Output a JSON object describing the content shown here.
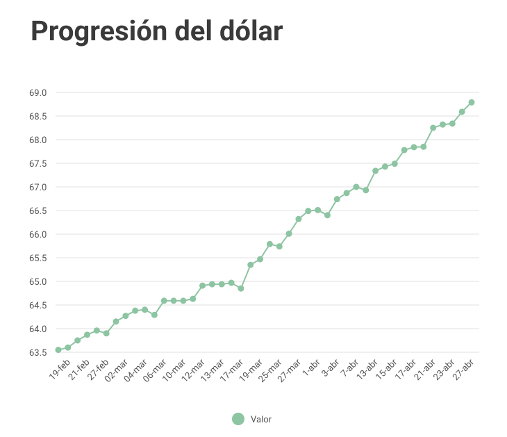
{
  "chart_data": {
    "type": "line",
    "title": "Progresión del dólar",
    "categories": [
      null,
      "19-feb",
      null,
      "21-feb",
      null,
      "27-feb",
      null,
      "02-mar",
      null,
      "04-mar",
      null,
      "06-mar",
      null,
      "10-mar",
      null,
      "12-mar",
      null,
      "13-mar",
      null,
      "17-mar",
      null,
      "19-mar",
      null,
      "25-mar",
      null,
      "27-mar",
      null,
      "1-abr",
      null,
      "3-abr",
      null,
      "7-abr",
      null,
      "13-abr",
      null,
      "15-abr",
      null,
      "17-abr",
      null,
      "21-abr",
      null,
      "23-abr",
      null,
      "27-abr"
    ],
    "series": [
      {
        "name": "Valor",
        "color": "#8dc4a2",
        "values": [
          63.55,
          63.6,
          63.75,
          63.87,
          63.96,
          63.9,
          64.15,
          64.27,
          64.38,
          64.4,
          64.29,
          64.59,
          64.59,
          64.59,
          64.63,
          64.91,
          64.94,
          64.94,
          64.97,
          64.85,
          65.35,
          65.47,
          65.79,
          65.74,
          66.01,
          66.32,
          66.49,
          66.51,
          66.4,
          66.74,
          66.87,
          67.0,
          66.93,
          67.34,
          67.43,
          67.49,
          67.78,
          67.84,
          67.85,
          68.25,
          68.32,
          68.34,
          68.59,
          68.79
        ]
      }
    ],
    "ylim": [
      63.5,
      69.0
    ],
    "yticks": [
      {
        "value": 63.5,
        "label": "63.5"
      },
      {
        "value": 64.0,
        "label": "64.0"
      },
      {
        "value": 64.5,
        "label": "64.5"
      },
      {
        "value": 65.0,
        "label": "65.0"
      },
      {
        "value": 65.5,
        "label": "65.5"
      },
      {
        "value": 66.0,
        "label": "66.0"
      },
      {
        "value": 66.5,
        "label": "66.5"
      },
      {
        "value": 67.0,
        "label": "67.0"
      },
      {
        "value": 67.5,
        "label": "67.5"
      },
      {
        "value": 68.0,
        "label": "68.0"
      },
      {
        "value": 68.5,
        "label": "68.5"
      },
      {
        "value": 69.0,
        "label": "69.0"
      }
    ],
    "grid": true,
    "legend": "bottom"
  }
}
